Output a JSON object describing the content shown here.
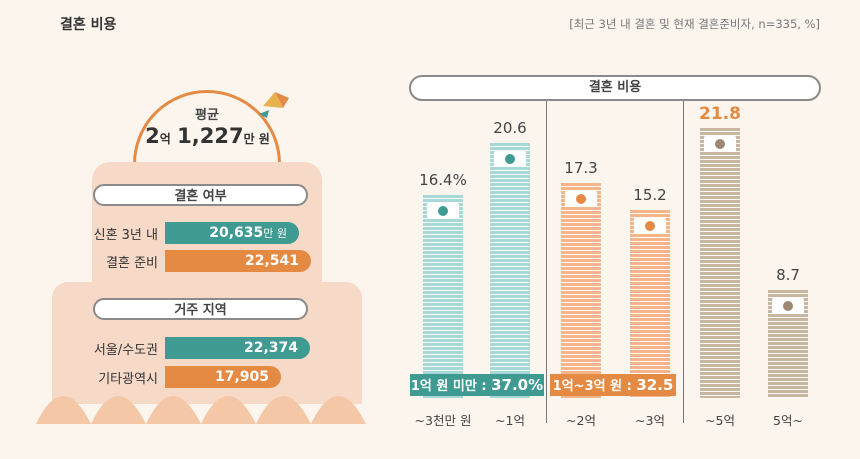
{
  "header": {
    "title": "결혼 비용",
    "note": "[최근 3년 내 결혼 및 현재 결혼준비자, n=335, %]"
  },
  "average": {
    "label": "평균",
    "eok": "2",
    "eok_unit": "억",
    "man": "1,227",
    "man_unit": "만 원"
  },
  "marriage_status": {
    "heading": "결혼 여부",
    "rows": [
      {
        "label": "신혼 3년 내",
        "value": "20,635",
        "unit": "만 원",
        "num": 20635,
        "color": "#3f9a92"
      },
      {
        "label": "결혼 준비",
        "value": "22,541",
        "unit": "",
        "num": 22541,
        "color": "#e58a43"
      }
    ]
  },
  "residence": {
    "heading": "거주 지역",
    "rows": [
      {
        "label": "서울/수도권",
        "value": "22,374",
        "num": 22374,
        "color": "#3f9a92"
      },
      {
        "label": "기타광역시",
        "value": "17,905",
        "num": 17905,
        "color": "#e58a43"
      }
    ]
  },
  "chart_data": {
    "type": "bar",
    "title": "결혼 비용",
    "unit": "%",
    "categories": [
      "~3천만 원",
      "~1억",
      "~2억",
      "~3억",
      "~5억",
      "5억~"
    ],
    "values": [
      16.4,
      20.6,
      17.3,
      15.2,
      21.8,
      8.7
    ],
    "value_labels": [
      "16.4%",
      "20.6",
      "17.3",
      "15.2",
      "21.8",
      "8.7"
    ],
    "highlight_index": 4,
    "colors": [
      "#a5d8d6",
      "#a5d8d6",
      "#f5b58a",
      "#f5b58a",
      "#c9b6a1",
      "#c9b6a1"
    ],
    "groups": [
      {
        "label": "1억 원 미만 : ",
        "value": "37.0%",
        "color": "#3f9a92"
      },
      {
        "label": "1억~3억 원 : ",
        "value": "32.5",
        "color": "#e58a43"
      }
    ]
  }
}
